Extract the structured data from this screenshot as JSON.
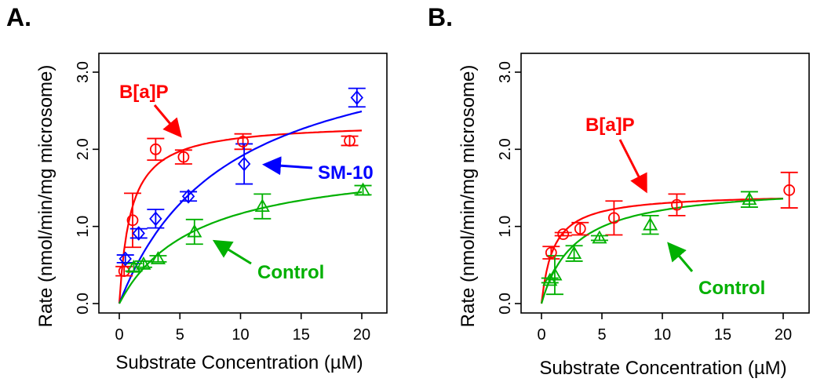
{
  "chart_data": [
    {
      "type": "scatter",
      "panel_label": "A.",
      "xlabel": "Substrate Concentration (µM)",
      "ylabel": "Rate (nmol/min/mg microsome)",
      "xlim": [
        0,
        21
      ],
      "ylim": [
        0,
        3.0
      ],
      "xticks": [
        "0",
        "5",
        "10",
        "15",
        "20"
      ],
      "yticks": [
        "0.0",
        "1.0",
        "2.0",
        "3.0"
      ],
      "series": [
        {
          "name": "B[a]P",
          "color": "#ff0000",
          "marker": "circle",
          "label": "B[a]P",
          "points": [
            {
              "x": 0.4,
              "y": 0.42,
              "err": 0.06
            },
            {
              "x": 1.1,
              "y": 1.08,
              "err": 0.35
            },
            {
              "x": 3.0,
              "y": 2.0,
              "err": 0.14
            },
            {
              "x": 5.3,
              "y": 1.9,
              "err": 0.09
            },
            {
              "x": 10.2,
              "y": 2.1,
              "err": 0.1
            },
            {
              "x": 19.0,
              "y": 2.11,
              "err": 0.06
            }
          ],
          "fit": {
            "vmax": 2.35,
            "km": 0.95
          }
        },
        {
          "name": "SM-10",
          "color": "#0000ff",
          "marker": "diamond",
          "label": "SM-10",
          "points": [
            {
              "x": 0.5,
              "y": 0.58,
              "err": 0.05
            },
            {
              "x": 1.6,
              "y": 0.91,
              "err": 0.06
            },
            {
              "x": 3.0,
              "y": 1.1,
              "err": 0.12
            },
            {
              "x": 5.7,
              "y": 1.39,
              "err": 0.06
            },
            {
              "x": 10.3,
              "y": 1.81,
              "err": 0.26
            },
            {
              "x": 19.6,
              "y": 2.67,
              "err": 0.12
            }
          ],
          "fit": {
            "vmax": 3.6,
            "km": 8.9
          }
        },
        {
          "name": "Control",
          "color": "#00b000",
          "marker": "triangle",
          "label": "Control",
          "points": [
            {
              "x": 1.2,
              "y": 0.47,
              "err": 0.05
            },
            {
              "x": 2.0,
              "y": 0.51,
              "err": 0.04
            },
            {
              "x": 3.2,
              "y": 0.58,
              "err": 0.04
            },
            {
              "x": 6.2,
              "y": 0.93,
              "err": 0.16
            },
            {
              "x": 11.8,
              "y": 1.26,
              "err": 0.16
            },
            {
              "x": 20.1,
              "y": 1.47,
              "err": 0.06
            }
          ],
          "fit": {
            "vmax": 1.9,
            "km": 6.3
          }
        }
      ]
    },
    {
      "type": "scatter",
      "panel_label": "B.",
      "xlabel": "Substrate Concentration (µM)",
      "ylabel": "Rate (nmol/min/mg microsome)",
      "xlim": [
        0,
        21
      ],
      "ylim": [
        0,
        3.0
      ],
      "xticks": [
        "0",
        "5",
        "10",
        "15",
        "20"
      ],
      "yticks": [
        "0.0",
        "1.0",
        "2.0",
        "3.0"
      ],
      "series": [
        {
          "name": "B[a]P",
          "color": "#ff0000",
          "marker": "circle",
          "label": "B[a]P",
          "points": [
            {
              "x": 0.8,
              "y": 0.66,
              "err": 0.08
            },
            {
              "x": 1.8,
              "y": 0.9,
              "err": 0.02
            },
            {
              "x": 3.2,
              "y": 0.97,
              "err": 0.08
            },
            {
              "x": 6.0,
              "y": 1.11,
              "err": 0.22
            },
            {
              "x": 11.2,
              "y": 1.28,
              "err": 0.14
            },
            {
              "x": 20.5,
              "y": 1.47,
              "err": 0.23
            }
          ],
          "fit": {
            "vmax": 1.43,
            "km": 1.0
          }
        },
        {
          "name": "Control",
          "color": "#00b000",
          "marker": "triangle",
          "label": "Control",
          "points": [
            {
              "x": 0.7,
              "y": 0.3,
              "err": 0.03
            },
            {
              "x": 1.1,
              "y": 0.37,
              "err": 0.25
            },
            {
              "x": 2.7,
              "y": 0.65,
              "err": 0.1
            },
            {
              "x": 4.8,
              "y": 0.85,
              "err": 0.03
            },
            {
              "x": 9.0,
              "y": 1.02,
              "err": 0.12
            },
            {
              "x": 17.2,
              "y": 1.35,
              "err": 0.1
            }
          ],
          "fit": {
            "vmax": 1.55,
            "km": 2.8
          }
        }
      ]
    }
  ]
}
